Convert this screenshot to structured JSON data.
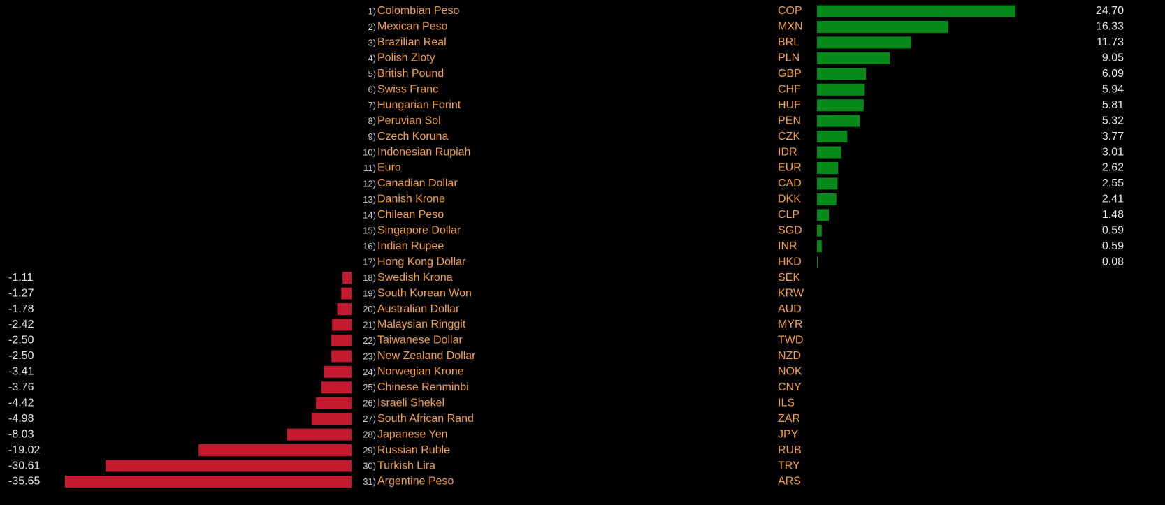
{
  "chart_data": {
    "type": "bar",
    "ranks": [
      "1)",
      "2)",
      "3)",
      "4)",
      "5)",
      "6)",
      "7)",
      "8)",
      "9)",
      "10)",
      "11)",
      "12)",
      "13)",
      "14)",
      "15)",
      "16)",
      "17)",
      "18)",
      "19)",
      "20)",
      "21)",
      "22)",
      "23)",
      "24)",
      "25)",
      "26)",
      "27)",
      "28)",
      "29)",
      "30)",
      "31)"
    ],
    "categories": [
      "Colombian Peso",
      "Mexican Peso",
      "Brazilian Real",
      "Polish Zloty",
      "British Pound",
      "Swiss Franc",
      "Hungarian Forint",
      "Peruvian Sol",
      "Czech Koruna",
      "Indonesian Rupiah",
      "Euro",
      "Canadian Dollar",
      "Danish Krone",
      "Chilean Peso",
      "Singapore Dollar",
      "Indian Rupee",
      "Hong Kong Dollar",
      "Swedish Krona",
      "South Korean Won",
      "Australian Dollar",
      "Malaysian Ringgit",
      "Taiwanese Dollar",
      "New Zealand Dollar",
      "Norwegian Krone",
      "Chinese Renminbi",
      "Israeli Shekel",
      "South African Rand",
      "Japanese Yen",
      "Russian Ruble",
      "Turkish Lira",
      "Argentine Peso"
    ],
    "codes": [
      "COP",
      "MXN",
      "BRL",
      "PLN",
      "GBP",
      "CHF",
      "HUF",
      "PEN",
      "CZK",
      "IDR",
      "EUR",
      "CAD",
      "DKK",
      "CLP",
      "SGD",
      "INR",
      "HKD",
      "SEK",
      "KRW",
      "AUD",
      "MYR",
      "TWD",
      "NZD",
      "NOK",
      "CNY",
      "ILS",
      "ZAR",
      "JPY",
      "RUB",
      "TRY",
      "ARS"
    ],
    "values": [
      24.7,
      16.33,
      11.73,
      9.05,
      6.09,
      5.94,
      5.81,
      5.32,
      3.77,
      3.01,
      2.62,
      2.55,
      2.41,
      1.48,
      0.59,
      0.59,
      0.08,
      -1.11,
      -1.27,
      -1.78,
      -2.42,
      -2.5,
      -2.5,
      -3.41,
      -3.76,
      -4.42,
      -4.98,
      -8.03,
      -19.02,
      -30.61,
      -35.65
    ],
    "value_labels": [
      "24.70",
      "16.33",
      "11.73",
      "9.05",
      "6.09",
      "5.94",
      "5.81",
      "5.32",
      "3.77",
      "3.01",
      "2.62",
      "2.55",
      "2.41",
      "1.48",
      "0.59",
      "0.59",
      "0.08",
      "-1.11",
      "-1.27",
      "-1.78",
      "-2.42",
      "-2.50",
      "-2.50",
      "-3.41",
      "-3.76",
      "-4.42",
      "-4.98",
      "-8.03",
      "-19.02",
      "-30.61",
      "-35.65"
    ],
    "positive_color": "#078a1a",
    "negative_color": "#c41a30"
  }
}
